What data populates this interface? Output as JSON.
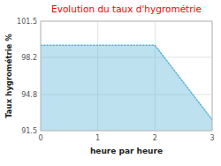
{
  "chart_data": {
    "type": "area",
    "title": "Evolution du taux d'hygrométrie",
    "xlabel": "heure par heure",
    "ylabel": "Taux hygrométrie %",
    "x": [
      0,
      2,
      3
    ],
    "values": [
      99.3,
      99.3,
      92.5
    ],
    "xlim": [
      0,
      3
    ],
    "ylim": [
      91.5,
      101.5
    ],
    "xticks": [
      0,
      1,
      2,
      3
    ],
    "yticks": [
      91.5,
      94.8,
      98.2,
      101.5
    ],
    "color": "#5ab4d6",
    "line_style": "dotted",
    "grid": true
  }
}
